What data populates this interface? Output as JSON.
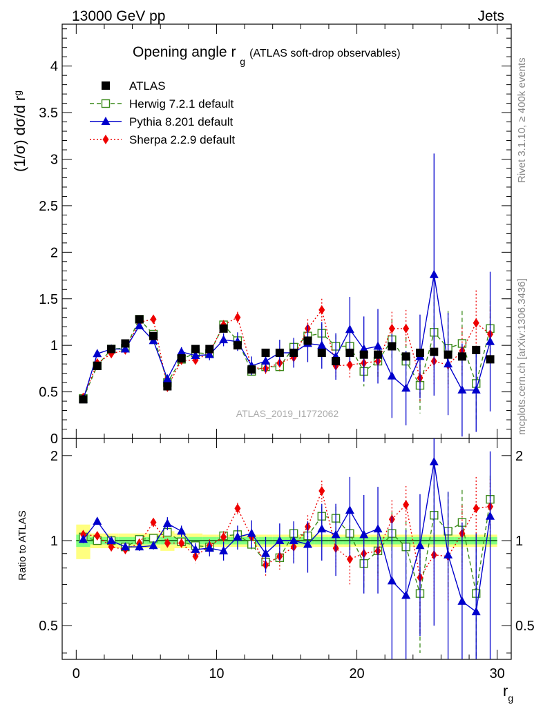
{
  "header": {
    "left": "13000 GeV pp",
    "right": "Jets"
  },
  "side_labels": {
    "rivet": "Rivet 3.1.10, ≥ 400k events",
    "mcplots": "mcplots.cern.ch [arXiv:1306.3436]"
  },
  "chart_data": [
    {
      "type": "scatter",
      "title": "Opening angle r",
      "title_subscript": "g",
      "title_suffix": "(ATLAS soft-drop observables)",
      "ylabel": "(1/σ) dσ/d r",
      "ylabel_subscript": "g",
      "watermark": "ATLAS_2019_I1772062",
      "xlim": [
        -1,
        31
      ],
      "ylim": [
        0,
        4.45
      ],
      "yticks": [
        0,
        0.5,
        1,
        1.5,
        2,
        2.5,
        3,
        3.5,
        4
      ],
      "ytick_labels": [
        "0",
        "0.5",
        "1",
        "1.5",
        "2",
        "2.5",
        "3",
        "3.5",
        "4"
      ],
      "x": [
        0.5,
        1.5,
        2.5,
        3.5,
        4.5,
        5.5,
        6.5,
        7.5,
        8.5,
        9.5,
        10.5,
        11.5,
        12.5,
        13.5,
        14.5,
        15.5,
        16.5,
        17.5,
        18.5,
        19.5,
        20.5,
        21.5,
        22.5,
        23.5,
        24.5,
        25.5,
        26.5,
        27.5,
        28.5,
        29.5
      ],
      "legend_position": "top-left",
      "series": [
        {
          "name": "ATLAS",
          "color": "#000000",
          "marker": "filled-square",
          "line": "none",
          "values": [
            0.42,
            0.78,
            0.96,
            1.02,
            1.28,
            1.1,
            0.56,
            0.86,
            0.96,
            0.96,
            1.18,
            1.0,
            0.74,
            0.92,
            0.92,
            0.92,
            1.05,
            0.92,
            0.83,
            0.92,
            0.9,
            0.9,
            0.99,
            0.88,
            0.92,
            0.93,
            0.9,
            0.88,
            0.95,
            0.85
          ],
          "errors": [
            0.02,
            0.02,
            0.02,
            0.02,
            0.02,
            0.02,
            0.02,
            0.02,
            0.02,
            0.02,
            0.02,
            0.02,
            0.02,
            0.02,
            0.02,
            0.02,
            0.02,
            0.02,
            0.02,
            0.02,
            0.02,
            0.02,
            0.03,
            0.03,
            0.03,
            0.03,
            0.03,
            0.03,
            0.03,
            0.03
          ]
        },
        {
          "name": "Herwig 7.2.1 default",
          "color": "#3a8a1a",
          "marker": "open-square",
          "line": "dashed",
          "values": [
            0.43,
            0.78,
            0.96,
            0.97,
            1.28,
            1.12,
            0.6,
            0.85,
            0.92,
            0.91,
            1.22,
            1.05,
            0.72,
            0.77,
            0.77,
            0.98,
            1.1,
            1.13,
            0.99,
            0.99,
            0.72,
            0.83,
            1.06,
            0.83,
            0.57,
            1.14,
            0.97,
            1.02,
            0.59,
            1.18
          ],
          "errors": [
            0.02,
            0.02,
            0.02,
            0.02,
            0.03,
            0.03,
            0.03,
            0.03,
            0.03,
            0.03,
            0.04,
            0.04,
            0.04,
            0.05,
            0.05,
            0.06,
            0.08,
            0.1,
            0.12,
            0.14,
            0.16,
            0.18,
            0.22,
            0.26,
            0.3,
            0.4,
            0.4,
            0.35,
            0.4,
            0.3
          ]
        },
        {
          "name": "Pythia 8.201 default",
          "color": "#0000cc",
          "marker": "filled-triangle",
          "line": "solid",
          "values": [
            0.42,
            0.91,
            0.96,
            0.96,
            1.21,
            1.05,
            0.64,
            0.93,
            0.89,
            0.9,
            1.06,
            1.04,
            0.78,
            0.83,
            0.92,
            0.92,
            1.02,
            1.0,
            0.88,
            1.17,
            0.96,
            0.99,
            0.67,
            0.54,
            0.88,
            1.76,
            0.8,
            0.52,
            0.52,
            1.04
          ],
          "errors": [
            0.02,
            0.03,
            0.03,
            0.03,
            0.03,
            0.03,
            0.04,
            0.05,
            0.05,
            0.06,
            0.07,
            0.1,
            0.1,
            0.12,
            0.14,
            0.16,
            0.2,
            0.25,
            0.25,
            0.35,
            0.35,
            0.4,
            0.45,
            0.4,
            0.45,
            1.3,
            0.55,
            0.5,
            0.45,
            0.75
          ]
        },
        {
          "name": "Sherpa 2.2.9 default",
          "color": "#ee0000",
          "marker": "filled-diamond",
          "line": "dotted",
          "values": [
            0.44,
            0.81,
            0.91,
            0.95,
            1.25,
            1.28,
            0.55,
            0.84,
            0.84,
            0.92,
            1.22,
            1.3,
            0.76,
            0.75,
            0.81,
            0.87,
            1.18,
            1.38,
            0.78,
            0.79,
            0.81,
            0.83,
            1.18,
            1.18,
            0.65,
            0.83,
            0.79,
            0.94,
            1.24,
            1.12
          ],
          "errors": [
            0.02,
            0.02,
            0.02,
            0.03,
            0.03,
            0.03,
            0.03,
            0.04,
            0.05,
            0.05,
            0.05,
            0.06,
            0.06,
            0.07,
            0.08,
            0.1,
            0.1,
            0.12,
            0.12,
            0.14,
            0.16,
            0.18,
            0.18,
            0.2,
            0.25,
            0.25,
            0.25,
            0.25,
            0.35,
            0.3
          ]
        }
      ]
    },
    {
      "type": "scatter",
      "ylabel": "Ratio to ATLAS",
      "xlabel": "r",
      "xlabel_subscript": "g",
      "xlim": [
        -1,
        31
      ],
      "xticks": [
        0,
        10,
        20,
        30
      ],
      "xtick_labels": [
        "0",
        "10",
        "20",
        "30"
      ],
      "ylim": [
        0.38,
        2.3
      ],
      "ylog": true,
      "yticks": [
        0.5,
        1,
        2
      ],
      "ytick_labels": [
        "0.5",
        "1",
        "2"
      ],
      "reference_line": 1,
      "data_uncertainty_band": {
        "outer_color": "#ffff80",
        "inner_color": "#80ff80",
        "outer_halfwidth": [
          0.14,
          0.06,
          0.06,
          0.06,
          0.06,
          0.06,
          0.08,
          0.06,
          0.06,
          0.05,
          0.05,
          0.05,
          0.05,
          0.05,
          0.05,
          0.05,
          0.05,
          0.05,
          0.05,
          0.05,
          0.05,
          0.05,
          0.05,
          0.05,
          0.05,
          0.05,
          0.05,
          0.05,
          0.05,
          0.05
        ],
        "inner_halfwidth": [
          0.05,
          0.03,
          0.03,
          0.03,
          0.03,
          0.03,
          0.03,
          0.03,
          0.03,
          0.03,
          0.03,
          0.03,
          0.03,
          0.03,
          0.03,
          0.03,
          0.03,
          0.03,
          0.03,
          0.03,
          0.03,
          0.03,
          0.03,
          0.03,
          0.03,
          0.03,
          0.03,
          0.03,
          0.03,
          0.03
        ]
      },
      "x": [
        0.5,
        1.5,
        2.5,
        3.5,
        4.5,
        5.5,
        6.5,
        7.5,
        8.5,
        9.5,
        10.5,
        11.5,
        12.5,
        13.5,
        14.5,
        15.5,
        16.5,
        17.5,
        18.5,
        19.5,
        20.5,
        21.5,
        22.5,
        23.5,
        24.5,
        25.5,
        26.5,
        27.5,
        28.5,
        29.5
      ],
      "series": [
        {
          "name": "Herwig 7.2.1 default",
          "color": "#3a8a1a",
          "marker": "open-square",
          "line": "dashed",
          "values": [
            1.03,
            1.0,
            1.0,
            0.95,
            1.01,
            1.02,
            1.07,
            0.99,
            0.96,
            0.95,
            1.04,
            1.05,
            0.97,
            0.84,
            0.87,
            1.06,
            1.04,
            1.22,
            1.2,
            1.06,
            0.83,
            0.92,
            1.06,
            0.95,
            0.65,
            1.23,
            1.08,
            1.16,
            0.65,
            1.4
          ],
          "errors": [
            0.02,
            0.02,
            0.02,
            0.02,
            0.02,
            0.02,
            0.03,
            0.03,
            0.03,
            0.03,
            0.03,
            0.04,
            0.05,
            0.05,
            0.05,
            0.06,
            0.08,
            0.1,
            0.12,
            0.14,
            0.16,
            0.18,
            0.2,
            0.22,
            0.25,
            0.35,
            0.4,
            0.35,
            0.4,
            0.3
          ]
        },
        {
          "name": "Pythia 8.201 default",
          "color": "#0000cc",
          "marker": "filled-triangle",
          "line": "solid",
          "values": [
            1.01,
            1.17,
            1.0,
            0.95,
            0.95,
            0.96,
            1.15,
            1.08,
            0.93,
            0.94,
            0.92,
            1.03,
            1.06,
            0.9,
            1.0,
            1.0,
            0.97,
            1.1,
            1.05,
            1.28,
            1.05,
            1.1,
            0.72,
            0.64,
            0.96,
            1.9,
            0.89,
            0.61,
            0.56,
            1.22
          ],
          "errors": [
            0.03,
            0.03,
            0.03,
            0.03,
            0.03,
            0.03,
            0.06,
            0.05,
            0.05,
            0.06,
            0.07,
            0.1,
            0.12,
            0.13,
            0.15,
            0.17,
            0.2,
            0.25,
            0.3,
            0.4,
            0.4,
            0.45,
            0.5,
            0.45,
            0.5,
            1.4,
            0.6,
            0.55,
            0.5,
            0.85
          ]
        },
        {
          "name": "Sherpa 2.2.9 default",
          "color": "#ee0000",
          "marker": "filled-diamond",
          "line": "dotted",
          "values": [
            1.05,
            1.04,
            0.95,
            0.93,
            0.98,
            1.16,
            0.98,
            0.98,
            0.88,
            0.96,
            1.03,
            1.3,
            1.03,
            0.82,
            0.88,
            0.95,
            1.12,
            1.5,
            0.94,
            0.86,
            0.9,
            0.92,
            1.19,
            1.34,
            0.74,
            0.89,
            0.88,
            1.06,
            1.3,
            1.32
          ],
          "errors": [
            0.02,
            0.02,
            0.02,
            0.03,
            0.03,
            0.03,
            0.03,
            0.04,
            0.05,
            0.05,
            0.05,
            0.06,
            0.07,
            0.08,
            0.09,
            0.11,
            0.11,
            0.13,
            0.14,
            0.16,
            0.18,
            0.2,
            0.2,
            0.22,
            0.27,
            0.27,
            0.27,
            0.27,
            0.38,
            0.33
          ]
        }
      ]
    }
  ]
}
